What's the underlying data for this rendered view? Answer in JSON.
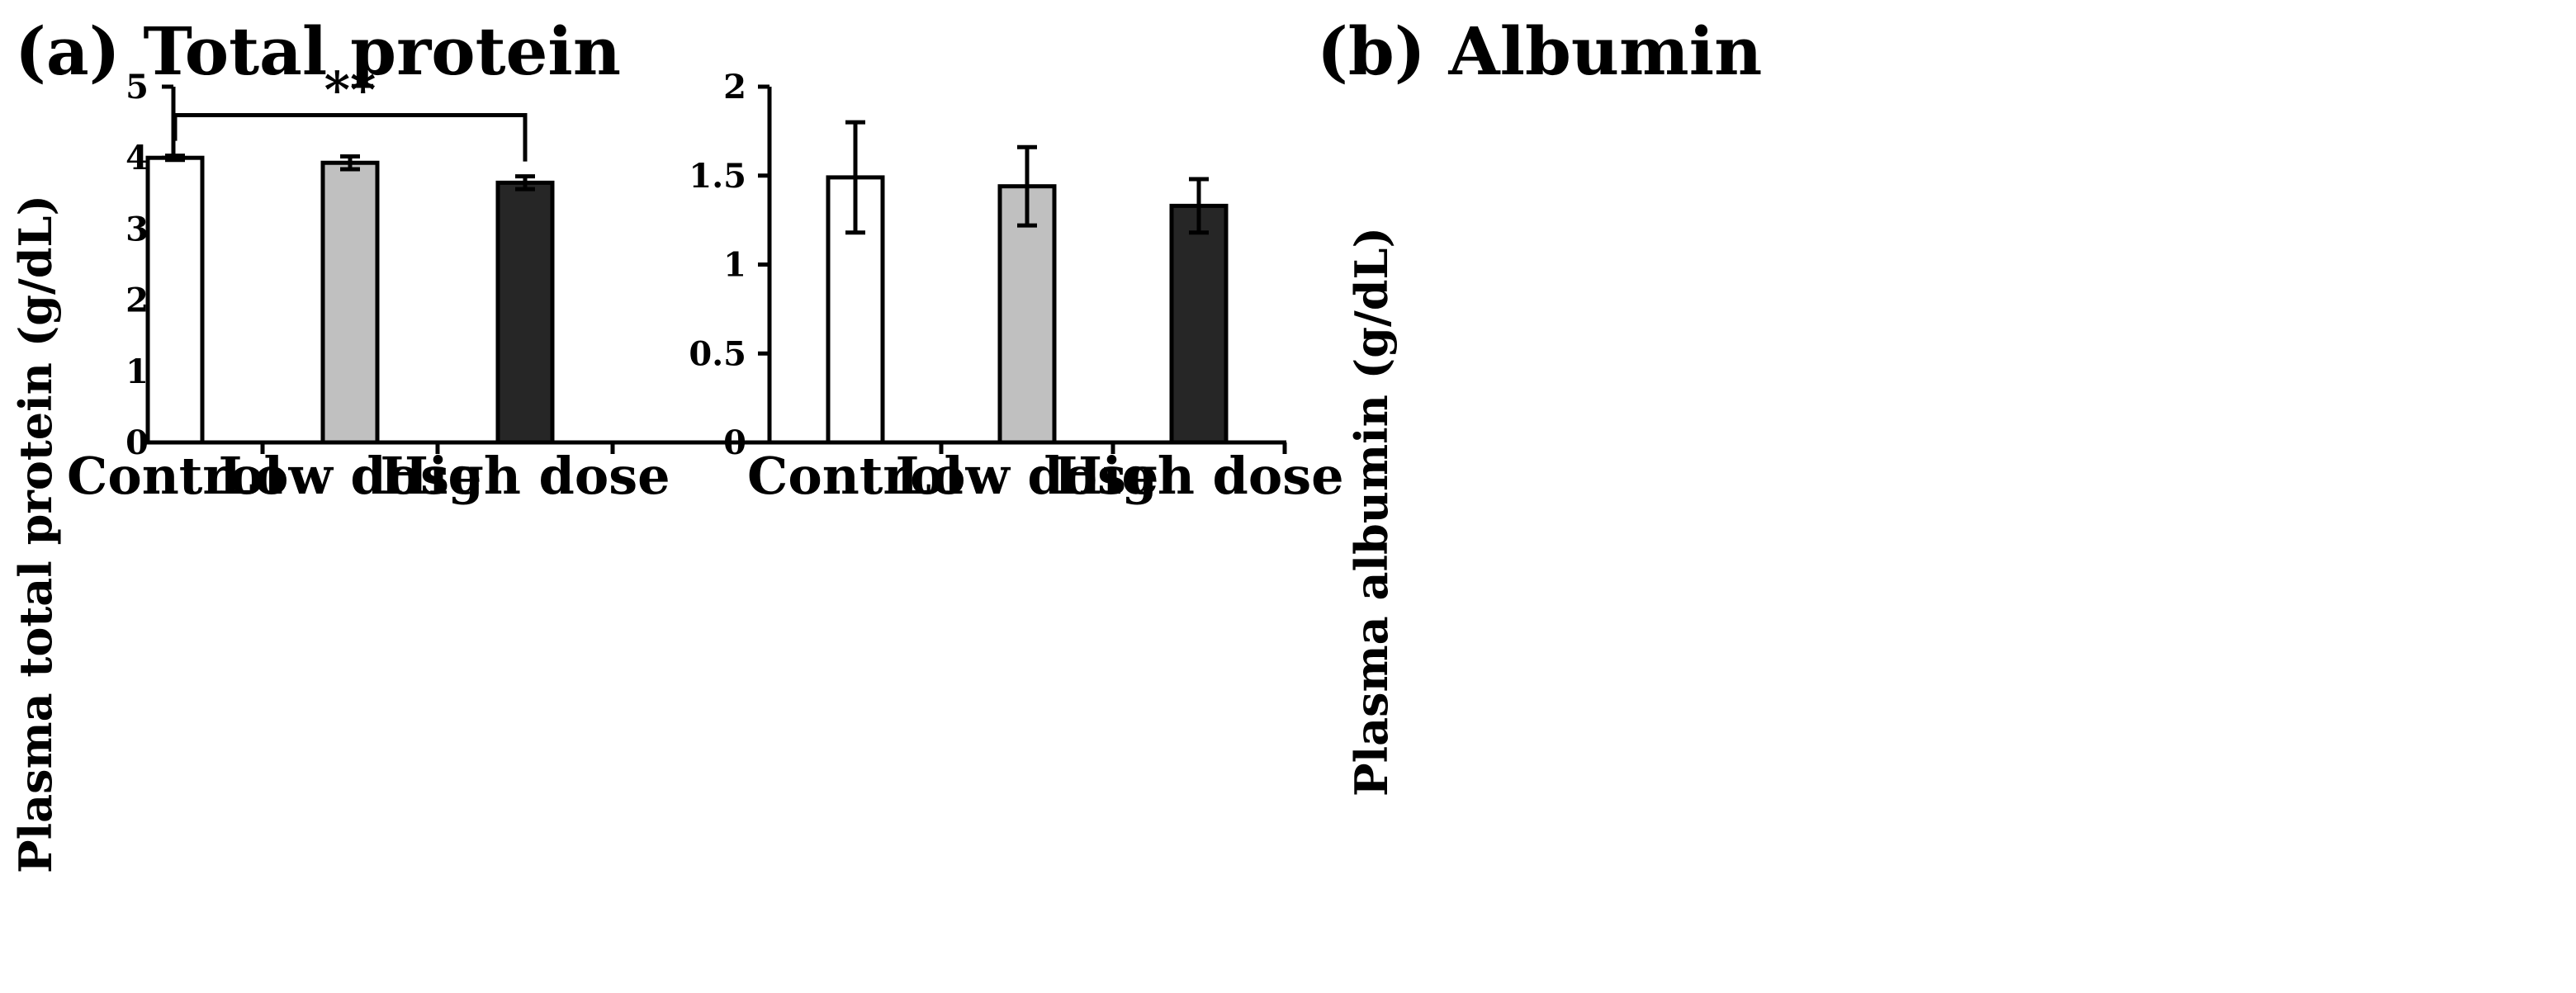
{
  "chart_data": [
    {
      "type": "bar",
      "title": "(a) Total protein",
      "xlabel": "",
      "ylabel": "Plasma total protein (g/dL)",
      "categories": [
        "Control",
        "Low dose",
        "High dose"
      ],
      "values": [
        4.0,
        3.93,
        3.65
      ],
      "errors": [
        0.03,
        0.09,
        0.09
      ],
      "ylim": [
        0,
        5
      ],
      "yticks": [
        "0",
        "1",
        "2",
        "3",
        "4",
        "5"
      ],
      "bar_colors": [
        "#ffffff",
        "#c0c0c0",
        "#262626"
      ],
      "significance": {
        "from": "Control",
        "to": "High dose",
        "label": "**",
        "y": 4.6
      },
      "grid": false
    },
    {
      "type": "bar",
      "title": "(b) Albumin",
      "xlabel": "",
      "ylabel": "Plasma albumin (g/dL)",
      "categories": [
        "Control",
        "Low dose",
        "High dose"
      ],
      "values": [
        1.49,
        1.44,
        1.33
      ],
      "errors": [
        0.31,
        0.22,
        0.15
      ],
      "ylim": [
        0,
        2
      ],
      "yticks": [
        "0",
        "0.5",
        "1",
        "1.5",
        "2"
      ],
      "bar_colors": [
        "#ffffff",
        "#c0c0c0",
        "#262626"
      ],
      "grid": false
    }
  ]
}
